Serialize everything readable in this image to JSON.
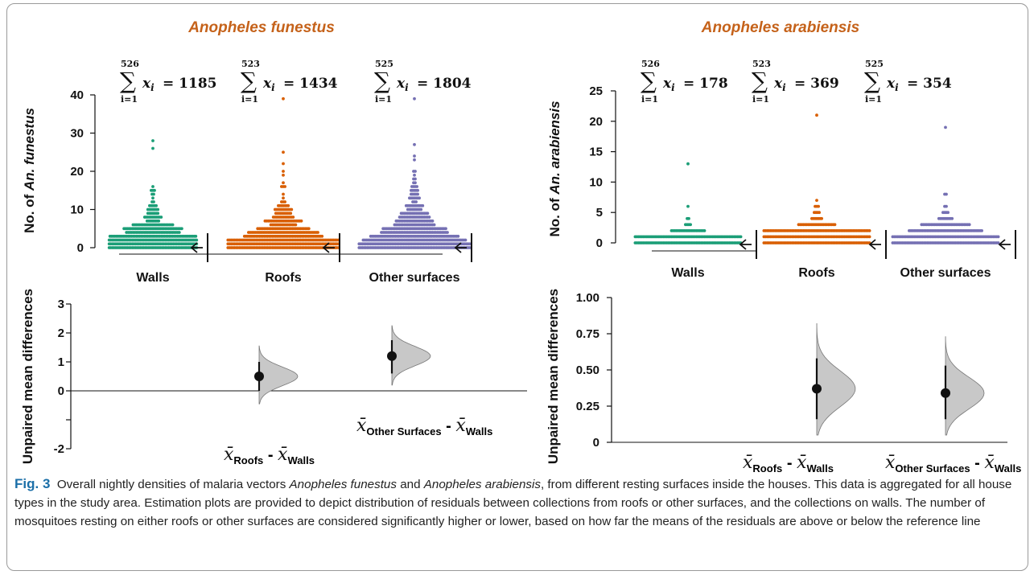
{
  "panels": [
    {
      "title": "Anopheles funestus",
      "ylabel_pre": "No. of ",
      "ylabel_species": "An. funestus",
      "sums": [
        {
          "n": "526",
          "lower": "i=1",
          "total": "1185"
        },
        {
          "n": "523",
          "lower": "i=1",
          "total": "1434"
        },
        {
          "n": "525",
          "lower": "i=1",
          "total": "1804"
        }
      ],
      "diff_ylabel": "Unpaired mean differences",
      "diff_labels": [
        {
          "sub1": "Roofs",
          "sub2": "Walls"
        },
        {
          "sub1": "Other Surfaces",
          "sub2": "Walls"
        }
      ]
    },
    {
      "title": "Anopheles arabiensis",
      "ylabel_pre": "No. of ",
      "ylabel_species": "An. arabiensis",
      "sums": [
        {
          "n": "526",
          "lower": "i=1",
          "total": "178"
        },
        {
          "n": "523",
          "lower": "i=1",
          "total": "369"
        },
        {
          "n": "525",
          "lower": "i=1",
          "total": "354"
        }
      ],
      "diff_ylabel": "Unpaired mean differences",
      "diff_labels": [
        {
          "sub1": "Roofs",
          "sub2": "Walls"
        },
        {
          "sub1": "Other Surfaces",
          "sub2": "Walls"
        }
      ]
    }
  ],
  "chart_data": [
    {
      "type": "scatter",
      "title": "Anopheles funestus",
      "ylabel": "No. of An. funestus",
      "categories": [
        "Walls",
        "Roofs",
        "Other surfaces"
      ],
      "ylim": [
        0,
        40
      ],
      "yticks": [
        0,
        10,
        20,
        30,
        40
      ],
      "colors": [
        "#1b9e77",
        "#d95f02",
        "#7570b3"
      ],
      "series": [
        {
          "name": "Walls",
          "n": 526,
          "total": 1185,
          "max": 28
        },
        {
          "name": "Roofs",
          "n": 523,
          "total": 1434,
          "max": 39
        },
        {
          "name": "Other surfaces",
          "n": 525,
          "total": 1804,
          "max": 39
        }
      ]
    },
    {
      "type": "scatter",
      "title": "Anopheles arabiensis",
      "ylabel": "No. of An. arabiensis",
      "categories": [
        "Walls",
        "Roofs",
        "Other surfaces"
      ],
      "ylim": [
        0,
        25
      ],
      "yticks": [
        0,
        5,
        10,
        15,
        20,
        25
      ],
      "colors": [
        "#1b9e77",
        "#d95f02",
        "#7570b3"
      ],
      "series": [
        {
          "name": "Walls",
          "n": 526,
          "total": 178,
          "max": 13
        },
        {
          "name": "Roofs",
          "n": 523,
          "total": 369,
          "max": 21
        },
        {
          "name": "Other surfaces",
          "n": 525,
          "total": 354,
          "max": 19
        }
      ]
    },
    {
      "type": "scatter",
      "ylabel": "Unpaired mean differences",
      "ylim": [
        -2,
        3
      ],
      "yticks": [
        -2,
        -1,
        0,
        1,
        2,
        3
      ],
      "ytick_labels": [
        "-2",
        "",
        "0",
        "1",
        "2",
        "3"
      ],
      "contrasts": [
        {
          "name": "Roofs - Walls",
          "mean": 0.5,
          "ci": [
            0.0,
            1.0
          ],
          "dist_range": [
            -0.45,
            1.55
          ]
        },
        {
          "name": "Other Surfaces - Walls",
          "mean": 1.2,
          "ci": [
            0.6,
            1.75
          ],
          "dist_range": [
            0.2,
            2.25
          ]
        }
      ]
    },
    {
      "type": "scatter",
      "ylabel": "Unpaired mean differences",
      "ylim": [
        0,
        1.0
      ],
      "yticks": [
        0,
        0.25,
        0.5,
        0.75,
        1.0
      ],
      "ytick_labels": [
        "0",
        "0.25",
        "0.50",
        "0.75",
        "1.00"
      ],
      "contrasts": [
        {
          "name": "Roofs - Walls",
          "mean": 0.37,
          "ci": [
            0.16,
            0.58
          ],
          "dist_range": [
            0.05,
            0.82
          ]
        },
        {
          "name": "Other Surfaces - Walls",
          "mean": 0.34,
          "ci": [
            0.16,
            0.53
          ],
          "dist_range": [
            0.05,
            0.73
          ]
        }
      ]
    }
  ],
  "caption": {
    "label": "Fig. 3",
    "t1": "Overall nightly densities of malaria vectors ",
    "sp1": "Anopheles funestus",
    "t2": " and ",
    "sp2": "Anopheles arabiensis",
    "t3": ", from different resting surfaces inside the houses. This data is aggregated for all house types in the study area. Estimation plots are provided to depict distribution of residuals between collections from roofs or other surfaces, and the collections on walls. The number of mosquitoes resting on either roofs or other surfaces are considered significantly higher or lower, based on how far the means of the residuals are above or below the reference line"
  }
}
